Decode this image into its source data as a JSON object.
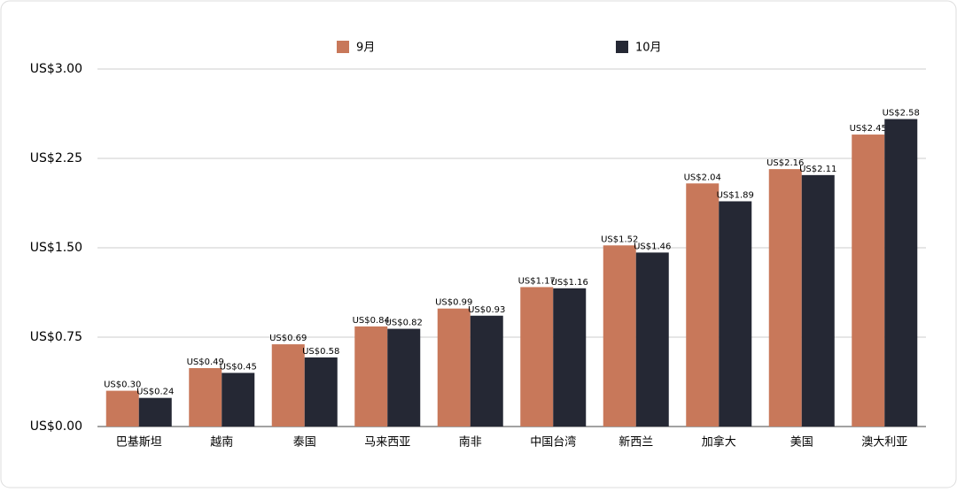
{
  "chart_data": {
    "type": "bar",
    "categories": [
      "巴基斯坦",
      "越南",
      "泰国",
      "马来西亚",
      "南非",
      "中国台湾",
      "新西兰",
      "加拿大",
      "美国",
      "澳大利亚"
    ],
    "series": [
      {
        "name": "9月",
        "color": "#c8785a",
        "values": [
          0.3,
          0.49,
          0.69,
          0.84,
          0.99,
          1.17,
          1.52,
          2.04,
          2.16,
          2.45
        ],
        "value_labels": [
          "US$0.30",
          "US$0.49",
          "US$0.69",
          "US$0.84",
          "US$0.99",
          "US$1.17",
          "US$1.52",
          "US$2.04",
          "US$2.16",
          "US$2.45"
        ]
      },
      {
        "name": "10月",
        "color": "#252834",
        "values": [
          0.24,
          0.45,
          0.58,
          0.82,
          0.93,
          1.16,
          1.46,
          1.89,
          2.11,
          2.58
        ],
        "value_labels": [
          "US$0.24",
          "US$0.45",
          "US$0.58",
          "US$0.82",
          "US$0.93",
          "US$1.16",
          "US$1.46",
          "US$1.89",
          "US$2.11",
          "US$2.58"
        ]
      }
    ],
    "ylim": [
      0,
      3
    ],
    "yticks": [
      {
        "value": 0,
        "label": "US$0.00"
      },
      {
        "value": 0.75,
        "label": "US$0.75"
      },
      {
        "value": 1.5,
        "label": "US$1.50"
      },
      {
        "value": 2.25,
        "label": "US$2.25"
      },
      {
        "value": 3,
        "label": "US$3.00"
      }
    ],
    "grid": true,
    "legend": "top"
  }
}
